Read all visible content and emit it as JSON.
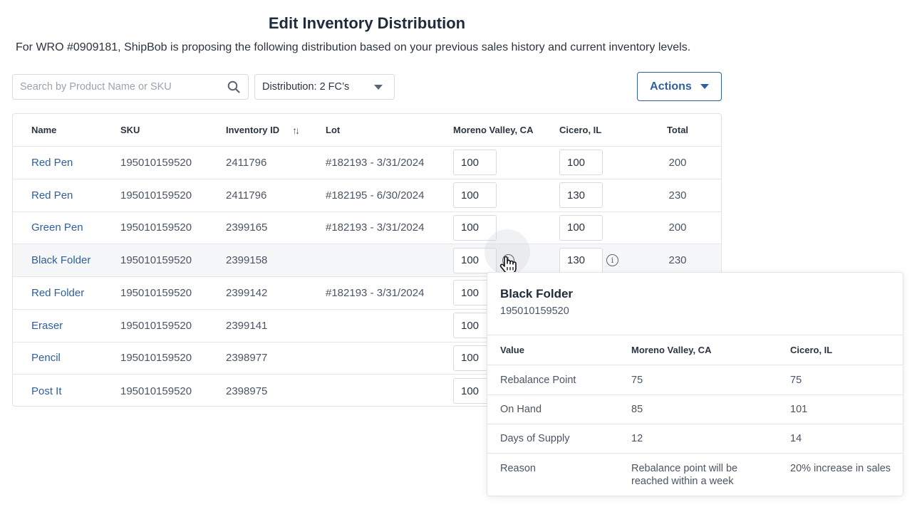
{
  "page": {
    "title": "Edit Inventory Distribution",
    "subtitle": "For WRO #0909181, ShipBob is proposing the following distribution based on your previous sales history and current inventory levels."
  },
  "toolbar": {
    "search_placeholder": "Search by Product Name or SKU",
    "distribution_label": "Distribution: 2 FC’s",
    "actions_label": "Actions"
  },
  "table": {
    "columns": [
      "Name",
      "SKU",
      "Inventory ID",
      "Lot",
      "Moreno Valley, CA",
      "Cicero, IL",
      "Total"
    ],
    "rows": [
      {
        "name": "Red Pen",
        "sku": "195010159520",
        "inventory_id": "2411796",
        "lot": "#182193 - 3/31/2024",
        "moreno_valley": "100",
        "cicero": "100",
        "total": "200"
      },
      {
        "name": "Red Pen",
        "sku": "195010159520",
        "inventory_id": "2411796",
        "lot": "#182195 - 6/30/2024",
        "moreno_valley": "100",
        "cicero": "130",
        "total": "230"
      },
      {
        "name": "Green Pen",
        "sku": "195010159520",
        "inventory_id": "2399165",
        "lot": "#182193 - 3/31/2024",
        "moreno_valley": "100",
        "cicero": "100",
        "total": "200"
      },
      {
        "name": "Black Folder",
        "sku": "195010159520",
        "inventory_id": "2399158",
        "lot": "",
        "moreno_valley": "100",
        "cicero": "130",
        "total": "230"
      },
      {
        "name": "Red Folder",
        "sku": "195010159520",
        "inventory_id": "2399142",
        "lot": "#182193 - 3/31/2024",
        "moreno_valley": "100",
        "cicero": "",
        "total": ""
      },
      {
        "name": "Eraser",
        "sku": "195010159520",
        "inventory_id": "2399141",
        "lot": "",
        "moreno_valley": "100",
        "cicero": "",
        "total": ""
      },
      {
        "name": "Pencil",
        "sku": "195010159520",
        "inventory_id": "2398977",
        "lot": "",
        "moreno_valley": "100",
        "cicero": "",
        "total": ""
      },
      {
        "name": "Post It",
        "sku": "195010159520",
        "inventory_id": "2398975",
        "lot": "",
        "moreno_valley": "100",
        "cicero": "",
        "total": ""
      }
    ]
  },
  "popover": {
    "title": "Black Folder",
    "sku": "195010159520",
    "columns": [
      "Value",
      "Moreno Valley, CA",
      "Cicero, IL"
    ],
    "rows": [
      {
        "label": "Rebalance Point",
        "moreno_valley": "75",
        "cicero": "75"
      },
      {
        "label": "On Hand",
        "moreno_valley": "85",
        "cicero": "101"
      },
      {
        "label": "Days of Supply",
        "moreno_valley": "12",
        "cicero": "14"
      },
      {
        "label": "Reason",
        "moreno_valley": "Rebalance point will be reached within a week",
        "cicero": "20% increase in sales"
      }
    ]
  },
  "icons": {
    "search": "search-icon",
    "sort": "sort-icon",
    "info": "info-icon",
    "cursor": "hand-pointer-icon",
    "dropdown": "chevron-down-icon"
  },
  "colors": {
    "link": "#2f5f9e",
    "text": "#2c3440",
    "border": "#d6dbe2",
    "highlight_row": "#f6f7f9"
  }
}
